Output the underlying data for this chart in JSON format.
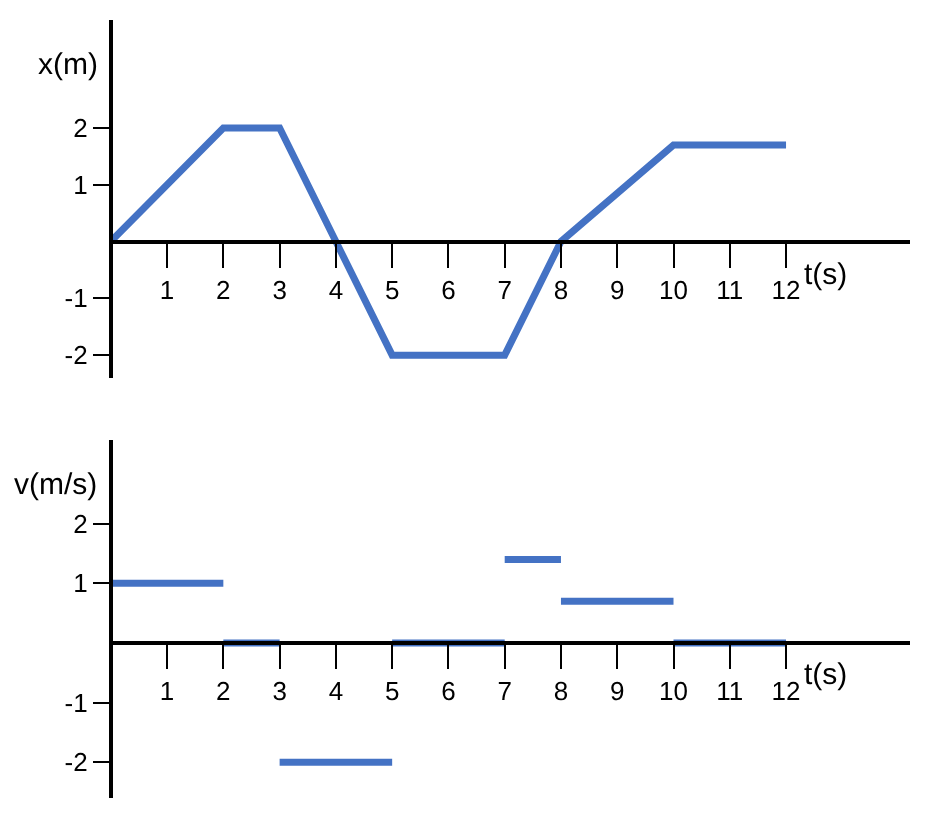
{
  "chart_data": [
    {
      "type": "line",
      "xlabel": "t(s)",
      "ylabel": "x(m)",
      "x": [
        0,
        2,
        3,
        4,
        5,
        7,
        8,
        10,
        12
      ],
      "series": [
        {
          "color": "#4472c4",
          "values": [
            0,
            2,
            2,
            0,
            -2,
            -2,
            0,
            1.7,
            1.7
          ]
        }
      ],
      "xlim": [
        0,
        14.2
      ],
      "ylim": [
        -2.4,
        3.9
      ],
      "xticks": [
        1,
        2,
        3,
        4,
        5,
        6,
        7,
        8,
        9,
        10,
        11,
        12
      ],
      "yticks": [
        -2,
        -1,
        1,
        2
      ]
    },
    {
      "type": "line",
      "xlabel": "t(s)",
      "ylabel": "v(m/s)",
      "series": [
        {
          "color": "#4472c4",
          "x": [
            0,
            2
          ],
          "values": [
            1,
            1
          ]
        },
        {
          "color": "#4472c4",
          "x": [
            2,
            3
          ],
          "values": [
            0,
            0
          ]
        },
        {
          "color": "#4472c4",
          "x": [
            3,
            5
          ],
          "values": [
            -2,
            -2
          ]
        },
        {
          "color": "#4472c4",
          "x": [
            5,
            7
          ],
          "values": [
            0,
            0
          ]
        },
        {
          "color": "#4472c4",
          "x": [
            7,
            8
          ],
          "values": [
            1.4,
            1.4
          ]
        },
        {
          "color": "#4472c4",
          "x": [
            8,
            10
          ],
          "values": [
            0.7,
            0.7
          ]
        },
        {
          "color": "#4472c4",
          "x": [
            10,
            12
          ],
          "values": [
            0,
            0
          ]
        }
      ],
      "xlim": [
        0,
        14.2
      ],
      "ylim": [
        -2.6,
        3.4
      ],
      "xticks": [
        1,
        2,
        3,
        4,
        5,
        6,
        7,
        8,
        9,
        10,
        11,
        12
      ],
      "yticks": [
        -2,
        -1,
        1,
        2
      ]
    }
  ]
}
